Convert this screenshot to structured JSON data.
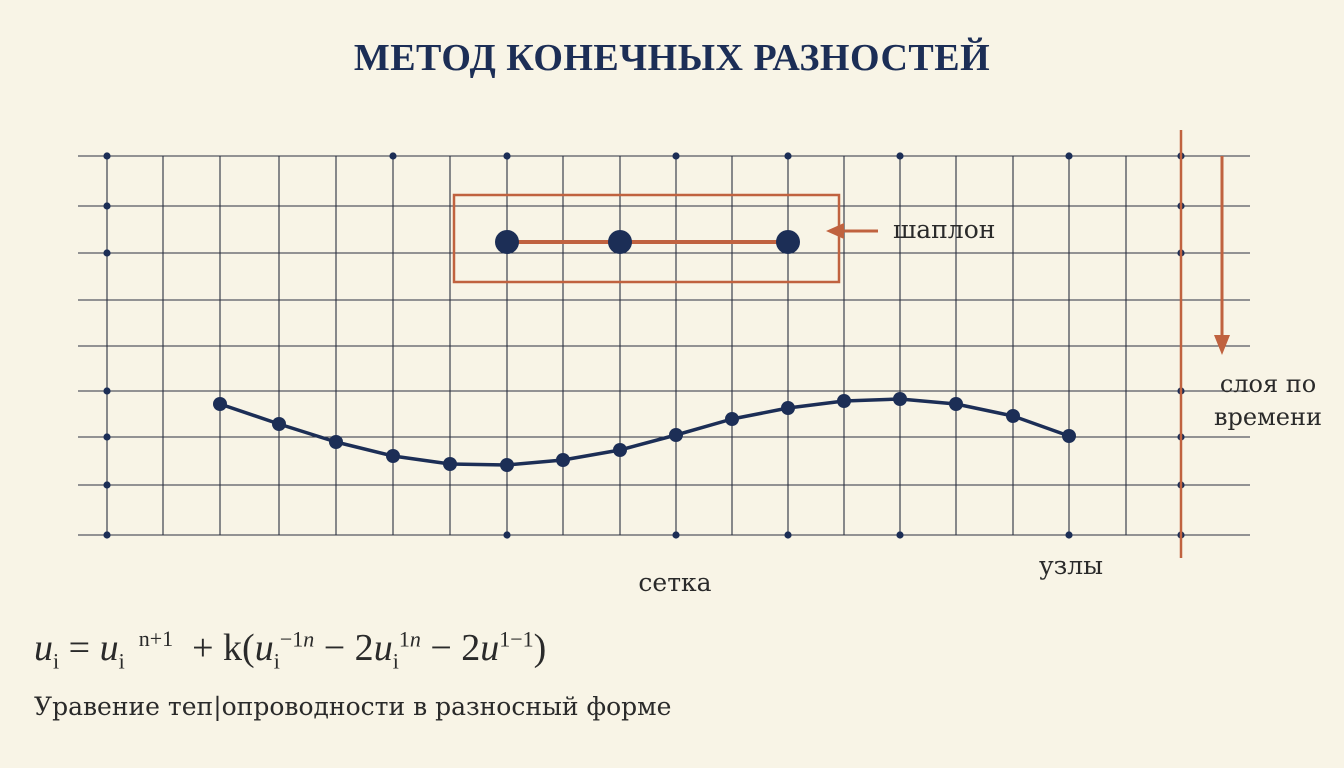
{
  "title": "МЕТОД КОНЕЧНЫХ РАЗНОСТЕЙ",
  "labels": {
    "stencil": "шаплон",
    "time_layers_line1": "слоя по",
    "time_layers_line2": "времени",
    "grid": "сетка",
    "nodes": "узлы"
  },
  "formula": {
    "lhs_var": "u",
    "lhs_sub": "i",
    "eq": " = ",
    "t1_var": "u",
    "t1_sub": "i",
    "t1_sup": "n+1",
    "plus_k": "+ k(",
    "t2_var": "u",
    "t2_sub": "i",
    "t2_sup": "−1",
    "t2_sup_n": "n",
    "minus2": " − 2",
    "t3_var": "u",
    "t3_sub": "i",
    "t3_sup": "1",
    "t3_sup_n": "n",
    "minus2b": " − 2",
    "t4_var": "u",
    "t4_sup": "1−1",
    "close": ")"
  },
  "caption": "Уравение теп|опроводности в разносный форме",
  "colors": {
    "background": "#f8f4e6",
    "grid": "#2b3040",
    "navy": "#1c2e56",
    "accent": "#c0623f"
  }
}
